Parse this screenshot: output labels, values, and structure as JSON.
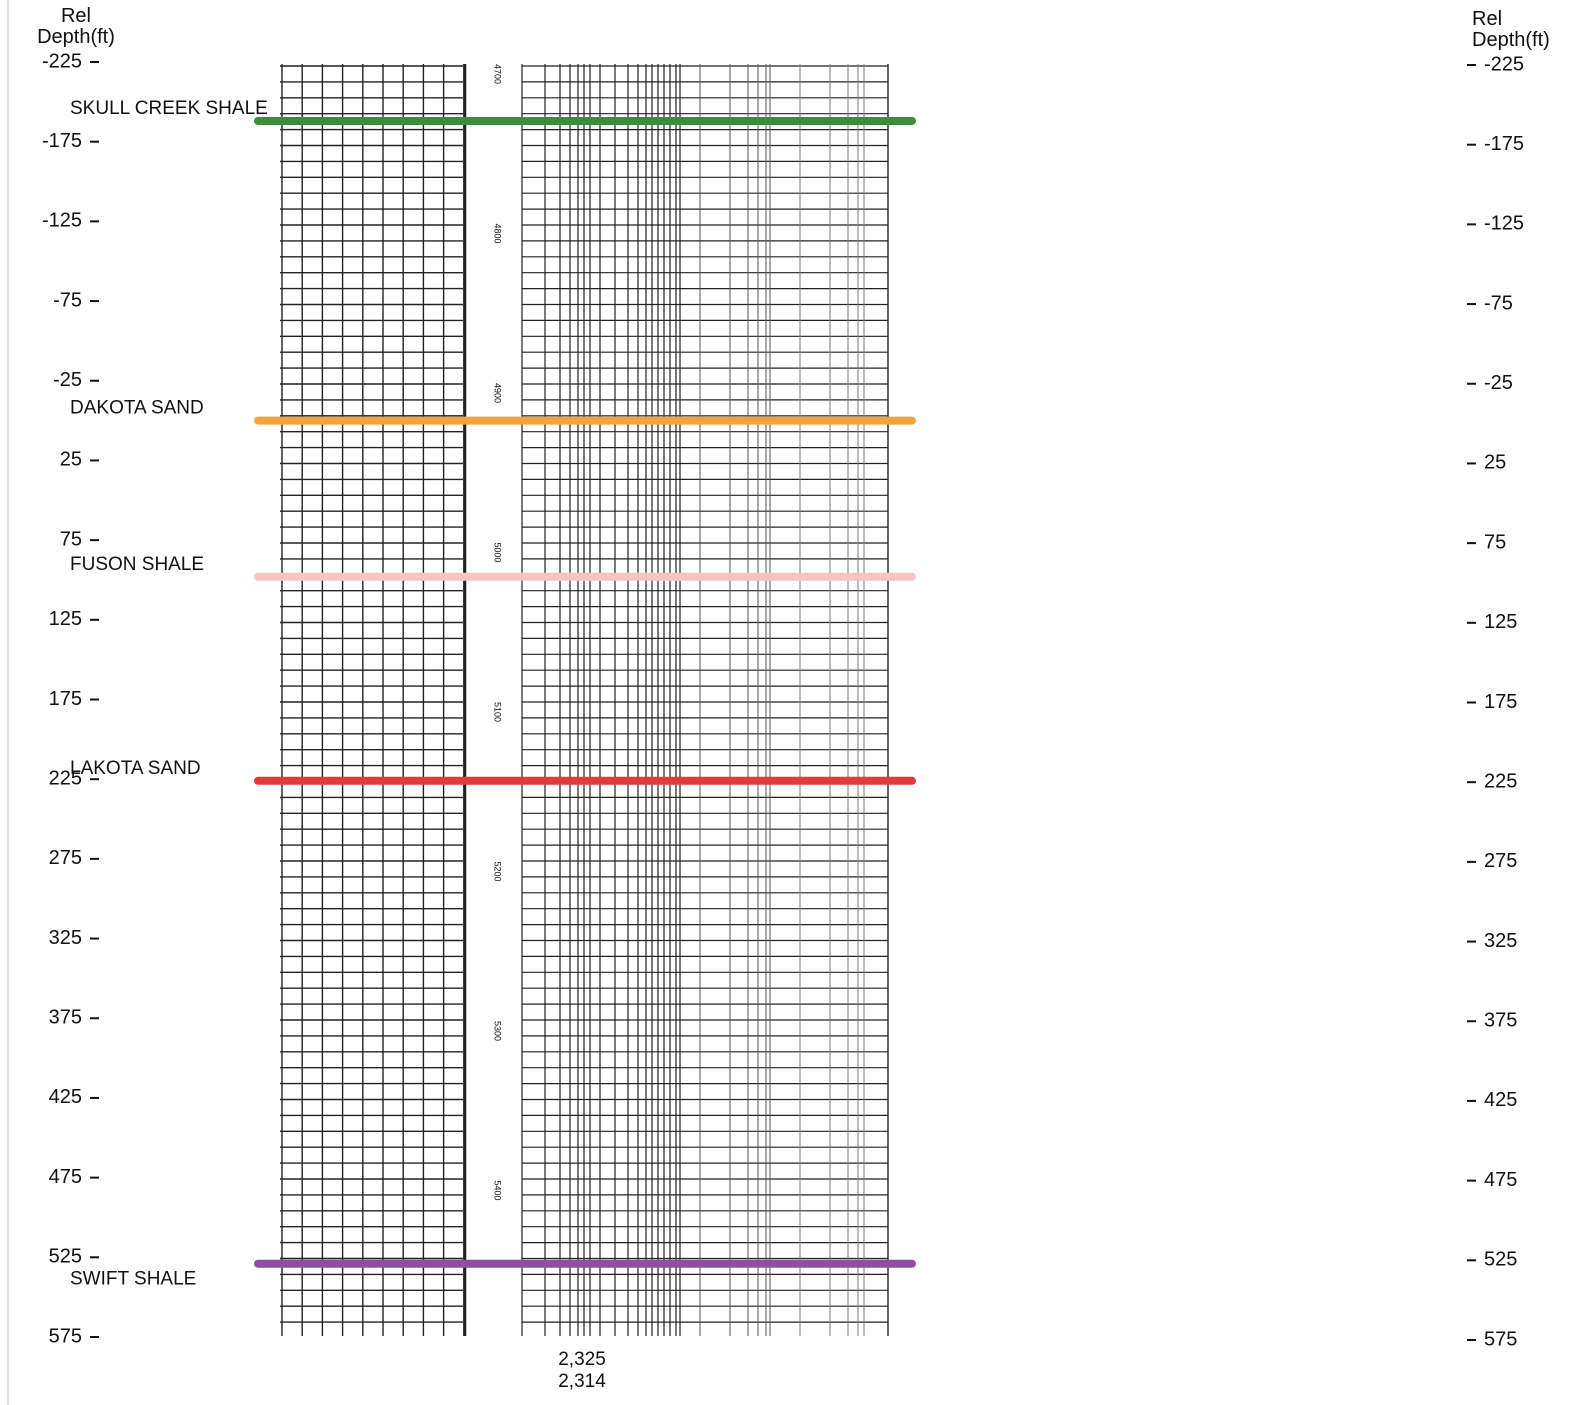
{
  "chart_data": {
    "type": "well-log",
    "y_label": "Rel Depth(ft)",
    "ylim": [
      -225,
      575
    ],
    "yticks": [
      -225,
      -175,
      -125,
      -75,
      -25,
      25,
      75,
      125,
      175,
      225,
      275,
      325,
      375,
      425,
      475,
      525,
      575
    ],
    "formations": [
      {
        "name": "SKULL CREEK SHALE",
        "depth": -188,
        "color": "#3c8c3c"
      },
      {
        "name": "DAKOTA SAND",
        "depth": 0,
        "color": "#f6a23a"
      },
      {
        "name": "FUSON SHALE",
        "depth": 98,
        "color": "#f7c4c4"
      },
      {
        "name": "LAKOTA SAND",
        "depth": 226,
        "color": "#e23b3b"
      },
      {
        "name": "SWIFT SHALE",
        "depth": 529,
        "color": "#8b4fa6"
      }
    ],
    "log_depth_labels": [
      "4700",
      "4800",
      "4900",
      "5000",
      "5100",
      "5200",
      "5300",
      "5400"
    ],
    "bottom_labels": [
      "2,325",
      "2,314"
    ]
  }
}
